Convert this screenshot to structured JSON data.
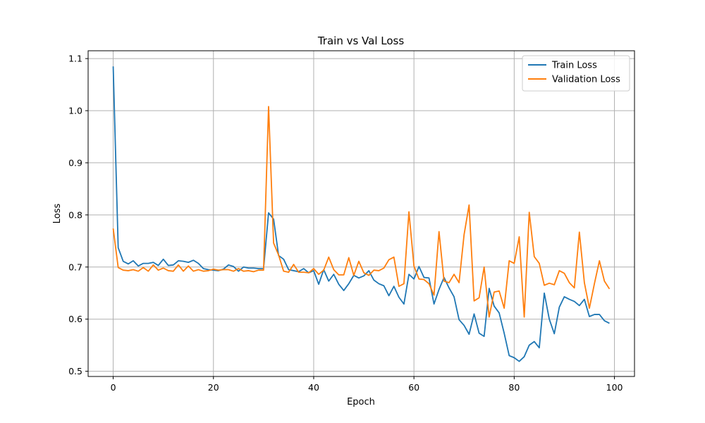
{
  "chart_data": {
    "type": "line",
    "title": "Train vs Val Loss",
    "xlabel": "Epoch",
    "ylabel": "Loss",
    "xlim": [
      -5,
      104
    ],
    "ylim": [
      0.49,
      1.115
    ],
    "xticks": [
      0,
      20,
      40,
      60,
      80,
      100
    ],
    "yticks": [
      0.5,
      0.6,
      0.7,
      0.8,
      0.9,
      1.0,
      1.1
    ],
    "ytick_labels": [
      "0.5",
      "0.6",
      "0.7",
      "0.8",
      "0.9",
      "1.0",
      "1.1"
    ],
    "grid": true,
    "legend_position": "top-right",
    "x": [
      0,
      1,
      2,
      3,
      4,
      5,
      6,
      7,
      8,
      9,
      10,
      11,
      12,
      13,
      14,
      15,
      16,
      17,
      18,
      19,
      20,
      21,
      22,
      23,
      24,
      25,
      26,
      27,
      28,
      29,
      30,
      31,
      32,
      33,
      34,
      35,
      36,
      37,
      38,
      39,
      40,
      41,
      42,
      43,
      44,
      45,
      46,
      47,
      48,
      49,
      50,
      51,
      52,
      53,
      54,
      55,
      56,
      57,
      58,
      59,
      60,
      61,
      62,
      63,
      64,
      65,
      66,
      67,
      68,
      69,
      70,
      71,
      72,
      73,
      74,
      75,
      76,
      77,
      78,
      79,
      80,
      81,
      82,
      83,
      84,
      85,
      86,
      87,
      88,
      89,
      90,
      91,
      92,
      93,
      94,
      95,
      96,
      97,
      98,
      99
    ],
    "series": [
      {
        "name": "Train Loss",
        "color": "#1f77b4",
        "values": [
          1.085,
          0.737,
          0.711,
          0.706,
          0.712,
          0.702,
          0.707,
          0.707,
          0.709,
          0.703,
          0.715,
          0.703,
          0.704,
          0.712,
          0.711,
          0.709,
          0.713,
          0.707,
          0.697,
          0.695,
          0.694,
          0.693,
          0.696,
          0.704,
          0.701,
          0.692,
          0.7,
          0.698,
          0.698,
          0.697,
          0.697,
          0.804,
          0.792,
          0.722,
          0.715,
          0.695,
          0.693,
          0.691,
          0.697,
          0.689,
          0.693,
          0.667,
          0.695,
          0.673,
          0.686,
          0.667,
          0.655,
          0.668,
          0.684,
          0.679,
          0.683,
          0.693,
          0.675,
          0.668,
          0.664,
          0.645,
          0.663,
          0.642,
          0.629,
          0.686,
          0.677,
          0.701,
          0.68,
          0.679,
          0.629,
          0.657,
          0.68,
          0.66,
          0.643,
          0.599,
          0.588,
          0.571,
          0.61,
          0.573,
          0.567,
          0.659,
          0.625,
          0.612,
          0.573,
          0.53,
          0.526,
          0.519,
          0.528,
          0.55,
          0.557,
          0.545,
          0.65,
          0.6,
          0.572,
          0.623,
          0.643,
          0.638,
          0.634,
          0.626,
          0.638,
          0.605,
          0.609,
          0.609,
          0.597,
          0.592
        ]
      },
      {
        "name": "Validation Loss",
        "color": "#ff7f0e",
        "values": [
          0.774,
          0.699,
          0.694,
          0.693,
          0.695,
          0.692,
          0.699,
          0.692,
          0.704,
          0.694,
          0.698,
          0.693,
          0.692,
          0.704,
          0.692,
          0.702,
          0.692,
          0.695,
          0.692,
          0.693,
          0.696,
          0.694,
          0.695,
          0.695,
          0.692,
          0.697,
          0.692,
          0.693,
          0.691,
          0.694,
          0.694,
          1.008,
          0.746,
          0.723,
          0.692,
          0.69,
          0.705,
          0.69,
          0.69,
          0.689,
          0.697,
          0.686,
          0.694,
          0.719,
          0.695,
          0.685,
          0.685,
          0.718,
          0.684,
          0.711,
          0.689,
          0.684,
          0.694,
          0.693,
          0.698,
          0.714,
          0.719,
          0.663,
          0.668,
          0.806,
          0.702,
          0.677,
          0.676,
          0.668,
          0.646,
          0.768,
          0.673,
          0.67,
          0.686,
          0.67,
          0.762,
          0.819,
          0.635,
          0.641,
          0.7,
          0.604,
          0.652,
          0.654,
          0.621,
          0.712,
          0.707,
          0.758,
          0.604,
          0.805,
          0.72,
          0.707,
          0.665,
          0.669,
          0.666,
          0.693,
          0.688,
          0.67,
          0.66,
          0.767,
          0.67,
          0.621,
          0.668,
          0.712,
          0.673,
          0.658
        ]
      }
    ]
  }
}
